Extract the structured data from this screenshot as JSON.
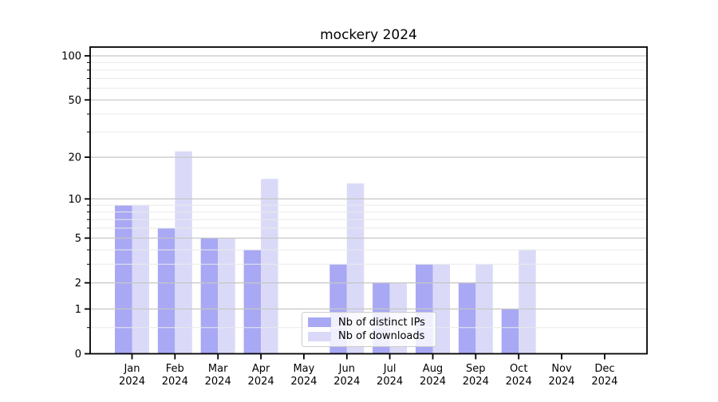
{
  "chart_data": {
    "type": "bar",
    "title": "mockery 2024",
    "categories": [
      "Jan",
      "Feb",
      "Mar",
      "Apr",
      "May",
      "Jun",
      "Jul",
      "Aug",
      "Sep",
      "Oct",
      "Nov",
      "Dec"
    ],
    "year_label": "2024",
    "series": [
      {
        "name": "Nb of distinct IPs",
        "color": "#a8a8f4",
        "values": [
          9,
          6,
          5,
          4,
          0,
          3,
          2,
          3,
          2,
          1,
          0,
          0
        ]
      },
      {
        "name": "Nb of downloads",
        "color": "#dadaf8",
        "values": [
          9,
          22,
          5,
          14,
          0,
          13,
          2,
          3,
          3,
          4,
          0,
          0
        ]
      }
    ],
    "yscale": "log1p",
    "ylim": [
      0,
      115
    ],
    "yticks": [
      0,
      1,
      2,
      5,
      10,
      20,
      50,
      100
    ],
    "yticks_minor": [
      0.5,
      3,
      4,
      6,
      7,
      8,
      9,
      30,
      40,
      60,
      70,
      80,
      90
    ],
    "grid": true,
    "legend_position": "lower center",
    "colors": {
      "grid_major": "#c6c6c6",
      "grid_minor": "#eaeaea",
      "axis": "#000000",
      "background": "#ffffff"
    }
  }
}
